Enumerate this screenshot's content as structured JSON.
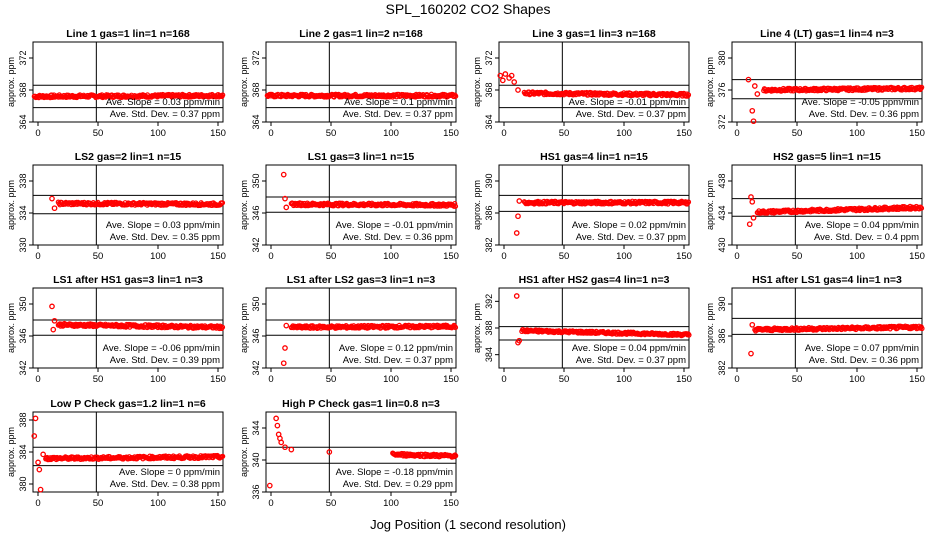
{
  "figure": {
    "title": "SPL_160202  CO2 Shapes",
    "xlabel": "Jog Position (1 second resolution)",
    "ylabel": "approx. ppm",
    "colors": {
      "points": "#ff0000",
      "axes": "#000000",
      "background": "#ffffff"
    }
  },
  "chart_data": [
    {
      "type": "scatter",
      "title": "Line 1 gas=1 lin=1 n=168",
      "xlim": [
        0,
        150
      ],
      "ylim": [
        364,
        374
      ],
      "yticks": [
        364,
        368,
        372
      ],
      "xticks": [
        0,
        50,
        100,
        150
      ],
      "hlines": [
        365.8,
        368.6
      ],
      "vline": 50,
      "slope": "Ave. Slope = 0.03  ppm/min",
      "std": "Ave. Std. Dev. = 0.37  ppm",
      "series": [
        {
          "values": [
            [
              1,
              367.2
            ],
            [
              150,
              367.3
            ]
          ]
        }
      ]
    },
    {
      "type": "scatter",
      "title": "Line 2 gas=1 lin=2 n=168",
      "xlim": [
        0,
        150
      ],
      "ylim": [
        364,
        374
      ],
      "yticks": [
        364,
        368,
        372
      ],
      "xticks": [
        0,
        50,
        100,
        150
      ],
      "hlines": [
        365.8,
        368.6
      ],
      "vline": 50,
      "slope": "Ave. Slope = 0.1  ppm/min",
      "std": "Ave. Std. Dev. = 0.37  ppm",
      "series": [
        {
          "values": [
            [
              1,
              367.3
            ],
            [
              150,
              367.3
            ]
          ]
        }
      ]
    },
    {
      "type": "scatter",
      "title": "Line 3 gas=1 lin=3 n=168",
      "xlim": [
        0,
        150
      ],
      "ylim": [
        364,
        374
      ],
      "yticks": [
        364,
        368,
        372
      ],
      "xticks": [
        0,
        50,
        100,
        150
      ],
      "hlines": [
        365.8,
        368.6
      ],
      "vline": 50,
      "slope": "Ave. Slope = -0.01  ppm/min",
      "std": "Ave. Std. Dev. = 0.37  ppm",
      "series": [
        {
          "values": [
            [
              1,
              369.8
            ],
            [
              3,
              369.2
            ],
            [
              5,
              370.0
            ],
            [
              8,
              369.5
            ],
            [
              10,
              369.8
            ],
            [
              12,
              369.0
            ],
            [
              15,
              368.0
            ],
            [
              20,
              367.6
            ],
            [
              150,
              367.4
            ]
          ]
        }
      ]
    },
    {
      "type": "scatter",
      "title": "Line 4 (LT) gas=1 lin=4 n=3",
      "xlim": [
        0,
        150
      ],
      "ylim": [
        372,
        382
      ],
      "yticks": [
        372,
        376,
        380
      ],
      "xticks": [
        0,
        50,
        100,
        150
      ],
      "hlines": [
        374.9,
        377.3
      ],
      "vline": 50,
      "slope": "Ave. Slope = -0.05  ppm/min",
      "std": "Ave. Std. Dev. = 0.36  ppm",
      "series": [
        {
          "values": [
            [
              13,
              377.3
            ],
            [
              16,
              373.4
            ],
            [
              17,
              372.1
            ],
            [
              18,
              376.5
            ],
            [
              20,
              375.5
            ],
            [
              25,
              376.0
            ],
            [
              150,
              376.2
            ]
          ]
        }
      ]
    },
    {
      "type": "scatter",
      "title": "LS2 gas=2 lin=1 n=15",
      "xlim": [
        0,
        150
      ],
      "ylim": [
        330,
        340
      ],
      "yticks": [
        330,
        334,
        338
      ],
      "xticks": [
        0,
        50,
        100,
        150
      ],
      "hlines": [
        333.9,
        336.2
      ],
      "vline": 50,
      "slope": "Ave. Slope = 0.03  ppm/min",
      "std": "Ave. Std. Dev. = 0.35  ppm",
      "series": [
        {
          "values": [
            [
              15,
              335.8
            ],
            [
              17,
              334.6
            ],
            [
              20,
              335.2
            ],
            [
              150,
              335.1
            ]
          ]
        }
      ]
    },
    {
      "type": "scatter",
      "title": "LS1 gas=3 lin=1 n=15",
      "xlim": [
        0,
        150
      ],
      "ylim": [
        342,
        352
      ],
      "yticks": [
        342,
        346,
        350
      ],
      "xticks": [
        0,
        50,
        100,
        150
      ],
      "hlines": [
        346.1,
        348.0
      ],
      "vline": 50,
      "slope": "Ave. Slope = -0.01  ppm/min",
      "std": "Ave. Std. Dev. = 0.36  ppm",
      "series": [
        {
          "values": [
            [
              14,
              350.8
            ],
            [
              15,
              347.8
            ],
            [
              16,
              346.7
            ],
            [
              20,
              347.1
            ],
            [
              150,
              347.0
            ]
          ]
        }
      ]
    },
    {
      "type": "scatter",
      "title": "HS1 gas=4 lin=1 n=15",
      "xlim": [
        0,
        150
      ],
      "ylim": [
        382,
        392
      ],
      "yticks": [
        382,
        386,
        390
      ],
      "xticks": [
        0,
        50,
        100,
        150
      ],
      "hlines": [
        386.2,
        388.2
      ],
      "vline": 50,
      "slope": "Ave. Slope = 0.02  ppm/min",
      "std": "Ave. Std. Dev. = 0.37  ppm",
      "series": [
        {
          "values": [
            [
              14,
              383.5
            ],
            [
              15,
              385.6
            ],
            [
              16,
              387.5
            ],
            [
              20,
              387.3
            ],
            [
              150,
              387.3
            ]
          ]
        }
      ]
    },
    {
      "type": "scatter",
      "title": "HS2 gas=5 lin=1 n=15",
      "xlim": [
        0,
        150
      ],
      "ylim": [
        430,
        440
      ],
      "yticks": [
        430,
        434,
        438
      ],
      "xticks": [
        0,
        50,
        100,
        150
      ],
      "hlines": [
        433.6,
        435.8
      ],
      "vline": 50,
      "slope": "Ave. Slope = 0.04  ppm/min",
      "std": "Ave. Std. Dev. = 0.4  ppm",
      "series": [
        {
          "values": [
            [
              14,
              432.6
            ],
            [
              15,
              436.0
            ],
            [
              16,
              435.4
            ],
            [
              17,
              433.4
            ],
            [
              20,
              434.1
            ],
            [
              150,
              434.7
            ]
          ]
        }
      ]
    },
    {
      "type": "scatter",
      "title": "LS1 after HS1 gas=3 lin=1 n=3",
      "xlim": [
        0,
        150
      ],
      "ylim": [
        342,
        352
      ],
      "yticks": [
        342,
        346,
        350
      ],
      "xticks": [
        0,
        50,
        100,
        150
      ],
      "hlines": [
        346.1,
        348.0
      ],
      "vline": 50,
      "slope": "Ave. Slope = -0.06  ppm/min",
      "std": "Ave. Std. Dev. = 0.39  ppm",
      "series": [
        {
          "values": [
            [
              15,
              349.7
            ],
            [
              16,
              346.8
            ],
            [
              17,
              347.9
            ],
            [
              20,
              347.4
            ],
            [
              150,
              347.1
            ]
          ]
        }
      ]
    },
    {
      "type": "scatter",
      "title": "LS1 after LS2 gas=3 lin=1 n=3",
      "xlim": [
        0,
        150
      ],
      "ylim": [
        342,
        352
      ],
      "yticks": [
        342,
        346,
        350
      ],
      "xticks": [
        0,
        50,
        100,
        150
      ],
      "hlines": [
        346.1,
        348.0
      ],
      "vline": 50,
      "slope": "Ave. Slope = 0.12  ppm/min",
      "std": "Ave. Std. Dev. = 0.37  ppm",
      "series": [
        {
          "values": [
            [
              14,
              342.6
            ],
            [
              15,
              344.5
            ],
            [
              16,
              347.3
            ],
            [
              20,
              347.1
            ],
            [
              150,
              347.2
            ]
          ]
        }
      ]
    },
    {
      "type": "scatter",
      "title": "HS1 after HS2 gas=4 lin=1 n=3",
      "xlim": [
        0,
        150
      ],
      "ylim": [
        382,
        394
      ],
      "yticks": [
        384,
        388,
        392
      ],
      "xticks": [
        0,
        50,
        100,
        150
      ],
      "hlines": [
        386.2,
        388.2
      ],
      "vline": 50,
      "slope": "Ave. Slope = 0.04  ppm/min",
      "std": "Ave. Std. Dev. = 0.37  ppm",
      "series": [
        {
          "values": [
            [
              14,
              392.8
            ],
            [
              15,
              385.8
            ],
            [
              16,
              386.1
            ],
            [
              18,
              387.6
            ],
            [
              150,
              387.0
            ]
          ]
        }
      ]
    },
    {
      "type": "scatter",
      "title": "HS1 after LS1 gas=4 lin=1 n=3",
      "xlim": [
        0,
        150
      ],
      "ylim": [
        382,
        392
      ],
      "yticks": [
        382,
        386,
        390
      ],
      "xticks": [
        0,
        50,
        100,
        150
      ],
      "hlines": [
        386.2,
        388.2
      ],
      "vline": 50,
      "slope": "Ave. Slope = 0.07  ppm/min",
      "std": "Ave. Std. Dev. = 0.36  ppm",
      "series": [
        {
          "values": [
            [
              15,
              383.8
            ],
            [
              16,
              387.4
            ],
            [
              18,
              386.8
            ],
            [
              150,
              387.1
            ]
          ]
        }
      ]
    },
    {
      "type": "scatter",
      "title": "Low P Check gas=1.2 lin=1 n=6",
      "xlim": [
        0,
        150
      ],
      "ylim": [
        379,
        389
      ],
      "yticks": [
        380,
        384,
        388
      ],
      "xticks": [
        0,
        50,
        100,
        150
      ],
      "hlines": [
        382.3,
        384.6
      ],
      "vline": 50,
      "slope": "Ave. Slope = 0  ppm/min",
      "std": "Ave. Std. Dev. = 0.38  ppm",
      "series": [
        {
          "values": [
            [
              1,
              386.0
            ],
            [
              2,
              388.2
            ],
            [
              4,
              382.7
            ],
            [
              5,
              381.8
            ],
            [
              6,
              379.3
            ],
            [
              8,
              383.7
            ],
            [
              10,
              383.2
            ],
            [
              150,
              383.4
            ]
          ]
        }
      ]
    },
    {
      "type": "scatter",
      "title": "High P Check gas=1 lin=0.8 n=3",
      "xlim": [
        0,
        150
      ],
      "ylim": [
        336,
        346
      ],
      "yticks": [
        336,
        340,
        344
      ],
      "xticks": [
        0,
        50,
        100,
        150
      ],
      "hlines": [
        339.6,
        341.6
      ],
      "vline": 50,
      "slope": "Ave. Slope = -0.18  ppm/min",
      "std": "Ave. Std. Dev. = 0.29  ppm",
      "series": [
        {
          "values": [
            [
              3,
              336.8
            ],
            [
              8,
              345.2
            ],
            [
              9,
              344.3
            ],
            [
              10,
              343.2
            ],
            [
              11,
              342.7
            ],
            [
              12,
              342.2
            ],
            [
              15,
              341.6
            ],
            [
              20,
              341.3
            ],
            [
              50,
              341.0
            ],
            [
              100,
              340.7
            ],
            [
              150,
              340.5
            ]
          ]
        }
      ]
    }
  ]
}
